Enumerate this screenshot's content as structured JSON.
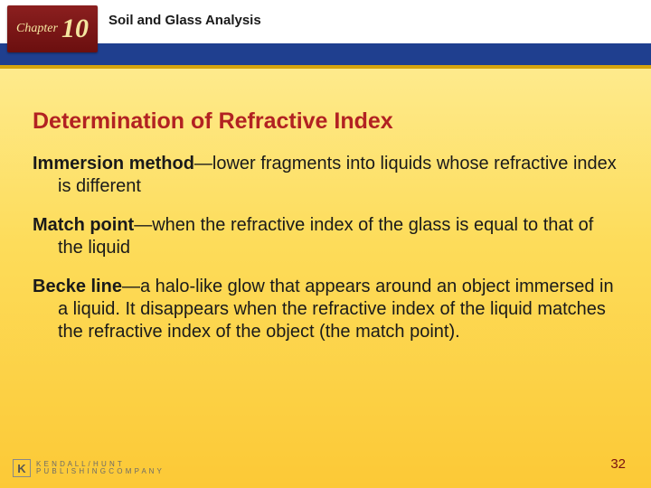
{
  "colors": {
    "header_accent": "#1f3f8f",
    "header_underline": "#d6a40e",
    "badge_bg_top": "#8b1f1f",
    "badge_bg_bottom": "#6b0f0f",
    "badge_text": "#f4e6a0",
    "heading": "#b22222",
    "body_text": "#1a1a1a",
    "bg_grad_top": "#fef0a0",
    "bg_grad_mid": "#fddc5a",
    "bg_grad_bottom": "#fcc936",
    "page_num": "#7a1010",
    "footer_gray": "#6a6a6a"
  },
  "typography": {
    "heading_fontsize": 25,
    "body_fontsize": 20,
    "chapter_title_fontsize": 15,
    "chapter_number_fontsize": 30,
    "page_num_fontsize": 15
  },
  "chapter": {
    "label": "Chapter",
    "number": "10",
    "title": "Soil and Glass Analysis"
  },
  "heading": "Determination of Refractive Index",
  "definitions": [
    {
      "term": "Immersion method",
      "body": "—lower fragments into liquids whose refractive index is different"
    },
    {
      "term": "Match point",
      "body": "—when the refractive index of the glass is equal to that of the liquid"
    },
    {
      "term": "Becke line",
      "body": "—a halo-like glow that appears around an object immersed in a liquid. It disappears when the refractive index of the liquid matches the refractive index of the object (the match point)."
    }
  ],
  "footer": {
    "publisher_line1": "K E N D A L L / H U N T",
    "publisher_line2": "P U B L I S H I N G  C O M P A N Y",
    "logo_letter": "K"
  },
  "page_number": "32"
}
